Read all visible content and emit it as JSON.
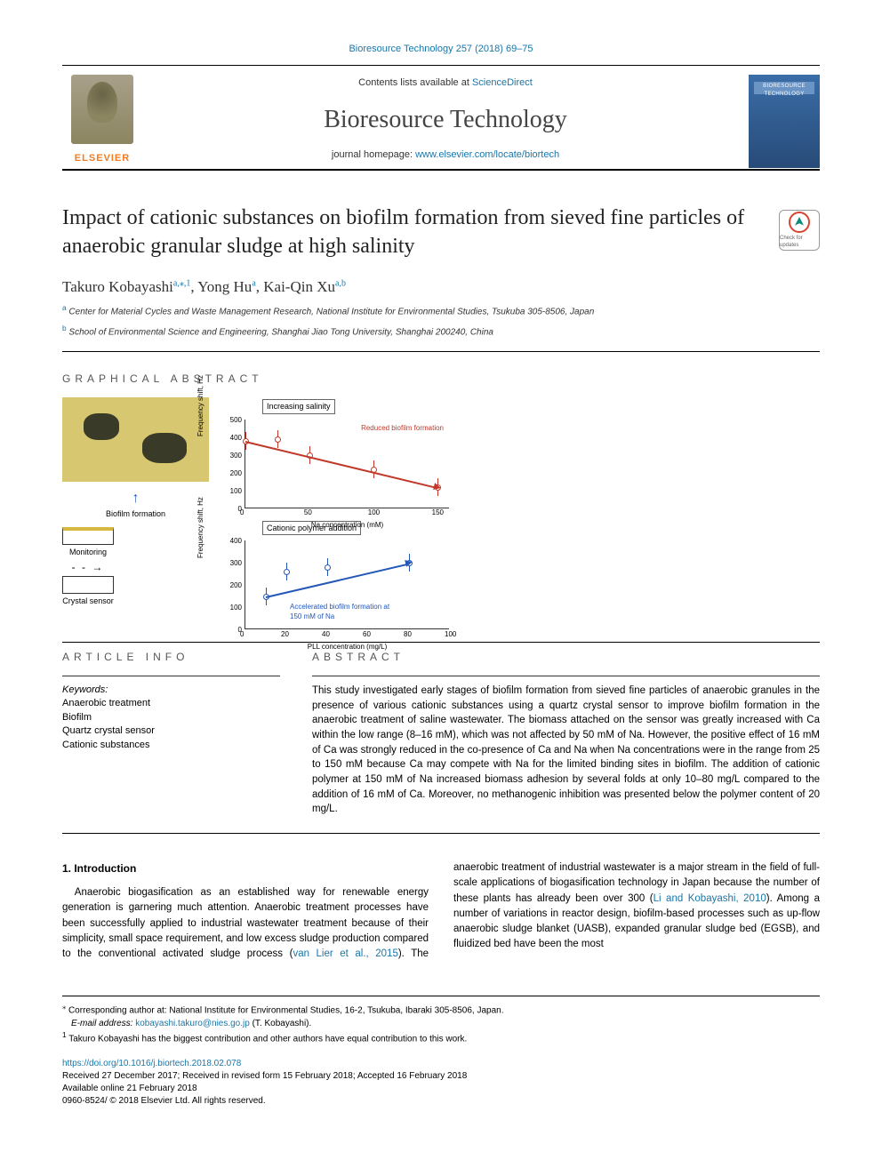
{
  "top_reference": "Bioresource Technology 257 (2018) 69–75",
  "header": {
    "contents_prefix": "Contents lists available at ",
    "contents_link": "ScienceDirect",
    "journal_name": "Bioresource Technology",
    "homepage_prefix": "journal homepage: ",
    "homepage_link": "www.elsevier.com/locate/biortech",
    "publisher_word": "ELSEVIER",
    "cover_label": "BIORESOURCE TECHNOLOGY"
  },
  "title": "Impact of cationic substances on biofilm formation from sieved fine particles of anaerobic granular sludge at high salinity",
  "check_badge_label": "Check for updates",
  "authors_html": "Takuro Kobayashi",
  "author_sup_1": "a,⁎,1",
  "author_2": ", Yong Hu",
  "author_sup_2": "a",
  "author_3": ", Kai-Qin Xu",
  "author_sup_3": "a,b",
  "affiliations": {
    "a_sup": "a",
    "a": " Center for Material Cycles and Waste Management Research, National Institute for Environmental Studies, Tsukuba 305-8506, Japan",
    "b_sup": "b",
    "b": " School of Environmental Science and Engineering, Shanghai Jiao Tong University, Shanghai 200240, China"
  },
  "ga": {
    "label": "GRAPHICAL ABSTRACT",
    "top_box": "Increasing salinity",
    "chart1": {
      "y_label": "Frequency shift, Hz",
      "x_label": "Na concentration (mM)",
      "ylim": [
        0,
        500
      ],
      "ytick_step": 100,
      "xlim": [
        0,
        160
      ],
      "points_x": [
        0,
        25,
        50,
        100,
        150
      ],
      "points_y": [
        380,
        390,
        300,
        220,
        120
      ],
      "point_color": "#c0392b",
      "trend_color": "#c0392b",
      "note": "Reduced biofilm formation",
      "note_color": "#c0392b"
    },
    "mid_box": "Cationic polymer addition",
    "chart2": {
      "y_label": "Frequency shift, Hz",
      "x_label": "PLL concentration (mg/L)",
      "ylim": [
        0,
        400
      ],
      "ytick_step": 100,
      "xlim": [
        0,
        100
      ],
      "xticks": [
        0,
        20,
        40,
        60,
        80,
        100
      ],
      "points_x": [
        10,
        20,
        40,
        80
      ],
      "points_y": [
        150,
        260,
        280,
        300
      ],
      "point_color": "#2457b8",
      "trend_color": "#2457b8",
      "note": "Accelerated biofilm formation at 150 mM of Na",
      "note_color": "#2457b8"
    },
    "biofilm_label": "Biofilm formation",
    "monitoring_label": "Monitoring",
    "sensor_label": "Crystal sensor"
  },
  "info": {
    "label": "ARTICLE INFO",
    "kw_label": "Keywords:",
    "kw": [
      "Anaerobic treatment",
      "Biofilm",
      "Quartz crystal sensor",
      "Cationic substances"
    ]
  },
  "abstract": {
    "label": "ABSTRACT",
    "text": "This study investigated early stages of biofilm formation from sieved fine particles of anaerobic granules in the presence of various cationic substances using a quartz crystal sensor to improve biofilm formation in the anaerobic treatment of saline wastewater. The biomass attached on the sensor was greatly increased with Ca within the low range (8–16 mM), which was not affected by 50 mM of Na. However, the positive effect of 16 mM of Ca was strongly reduced in the co-presence of Ca and Na when Na concentrations were in the range from 25 to 150 mM because Ca may compete with Na for the limited binding sites in biofilm. The addition of cationic polymer at 150 mM of Na increased biomass adhesion by several folds at only 10–80 mg/L compared to the addition of 16 mM of Ca. Moreover, no methanogenic inhibition was presented below the polymer content of 20 mg/L."
  },
  "body": {
    "h1": "1. Introduction",
    "p1a": "Anaerobic biogasification as an established way for renewable energy generation is garnering much attention. Anaerobic treatment processes have been successfully applied to industrial wastewater treatment because of their simplicity, small space requirement, and low excess sludge production compared to the conventional activated ",
    "p1b": "sludge process (",
    "ref1": "van Lier et al., 2015",
    "p1c": "). The anaerobic treatment of industrial wastewater is a major stream in the field of full-scale applications of biogasification technology in Japan because the number of these plants has already been over 300 (",
    "ref2": "Li and Kobayashi, 2010",
    "p1d": "). Among a number of variations in reactor design, biofilm-based processes such as up-flow anaerobic sludge blanket (UASB), expanded granular sludge bed (EGSB), and fluidized bed have been the most"
  },
  "footnotes": {
    "corr_sym": "⁎",
    "corr": " Corresponding author at: National Institute for Environmental Studies, 16-2, Tsukuba, Ibaraki 305-8506, Japan.",
    "email_label": "E-mail address: ",
    "email": "kobayashi.takuro@nies.go.jp",
    "email_tail": " (T. Kobayashi).",
    "note1_sym": "1",
    "note1": " Takuro Kobayashi has the biggest contribution and other authors have equal contribution to this work."
  },
  "foot_meta": {
    "doi": "https://doi.org/10.1016/j.biortech.2018.02.078",
    "received": "Received 27 December 2017; Received in revised form 15 February 2018; Accepted 16 February 2018",
    "available": "Available online 21 February 2018",
    "copyright": "0960-8524/ © 2018 Elsevier Ltd. All rights reserved."
  },
  "colors": {
    "link": "#1976a8",
    "elsevier_orange": "#f47b20",
    "chart_red": "#c0392b",
    "chart_blue": "#2457b8"
  }
}
